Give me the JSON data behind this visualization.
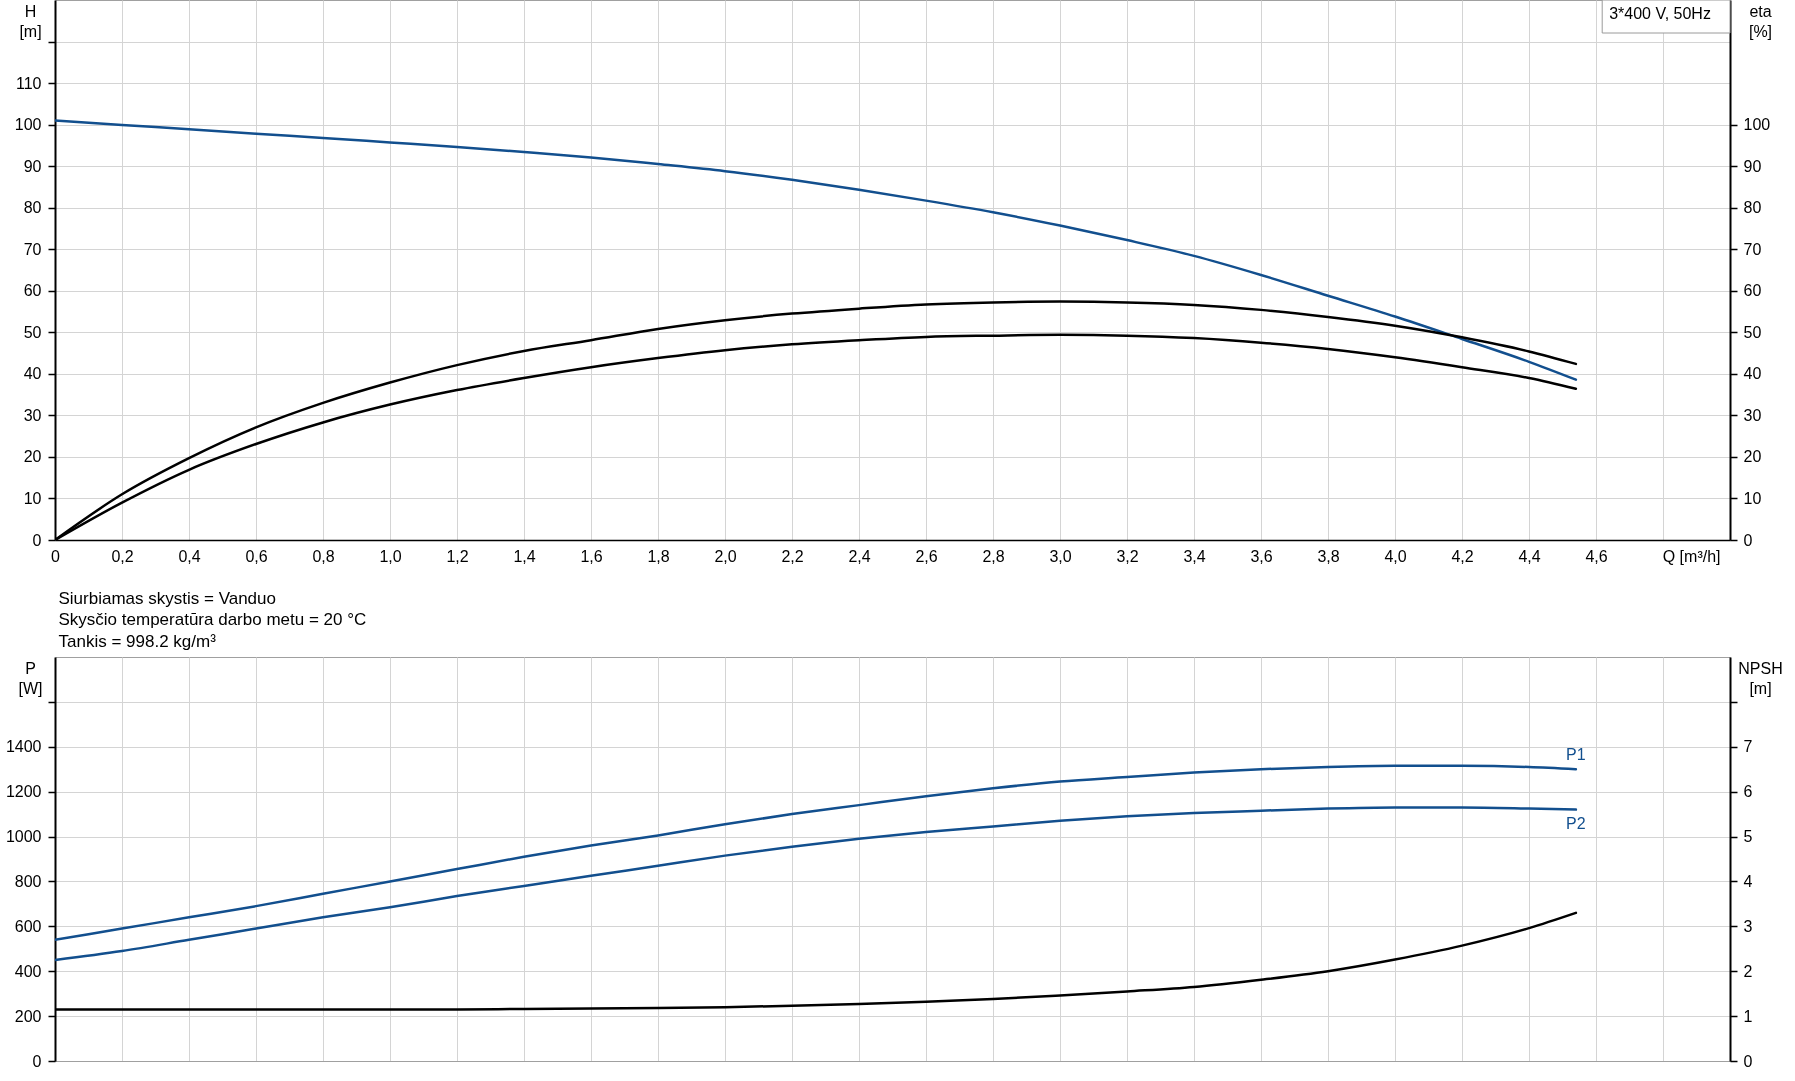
{
  "chart_data": [
    {
      "type": "line",
      "xlabel": "Q [m³/h]",
      "ylabel": "H [m]",
      "y2label": "eta [%]",
      "annotations": [
        "3*400 V, 50Hz"
      ],
      "x": [
        0,
        0.2,
        0.4,
        0.6,
        0.8,
        1.0,
        1.2,
        1.4,
        1.6,
        1.8,
        2.0,
        2.2,
        2.4,
        2.6,
        2.8,
        3.0,
        3.2,
        3.4,
        3.6,
        3.8,
        4.0,
        4.2,
        4.4,
        4.54
      ],
      "xlim": [
        0,
        5
      ],
      "xticks": [
        0,
        {
          "value": 0.2,
          "label": "0,2"
        },
        {
          "value": 0.4,
          "label": "0,4"
        },
        {
          "value": 0.6,
          "label": "0,6"
        },
        {
          "value": 0.8,
          "label": "0,8"
        },
        {
          "value": 1,
          "label": "1,0"
        },
        {
          "value": 1.2,
          "label": "1,2"
        },
        {
          "value": 1.4,
          "label": "1,4"
        },
        {
          "value": 1.6,
          "label": "1,6"
        },
        {
          "value": 1.8,
          "label": "1,8"
        },
        {
          "value": 2,
          "label": "2,0"
        },
        {
          "value": 2.2,
          "label": "2,2"
        },
        {
          "value": 2.4,
          "label": "2,4"
        },
        {
          "value": 2.6,
          "label": "2,6"
        },
        {
          "value": 2.8,
          "label": "2,8"
        },
        {
          "value": 3,
          "label": "3,0"
        },
        {
          "value": 3.2,
          "label": "3,2"
        },
        {
          "value": 3.4,
          "label": "3,4"
        },
        {
          "value": 3.6,
          "label": "3,6"
        },
        {
          "value": 3.8,
          "label": "3,8"
        },
        {
          "value": 4,
          "label": "4,0"
        },
        {
          "value": 4.2,
          "label": "4,2"
        },
        {
          "value": 4.4,
          "label": "4,4"
        },
        {
          "value": 4.6,
          "label": "4,6"
        },
        {
          "value": 4.8,
          "label": null
        }
      ],
      "ylim": [
        0,
        130
      ],
      "yticks": [
        0,
        10,
        20,
        30,
        40,
        50,
        60,
        70,
        80,
        90,
        100,
        110,
        {
          "value": 120,
          "label": null
        }
      ],
      "y2lim": [
        0,
        130
      ],
      "y2ticks": [
        0,
        10,
        20,
        30,
        40,
        50,
        60,
        70,
        80,
        90,
        100
      ],
      "grid": true,
      "series": [
        {
          "color": "#124f8e",
          "values": [
            101.0,
            99.9,
            98.9,
            97.8,
            96.8,
            95.7,
            94.6,
            93.4,
            92.1,
            90.5,
            88.8,
            86.7,
            84.3,
            81.7,
            78.9,
            75.7,
            72.2,
            68.4,
            63.8,
            58.8,
            53.8,
            48.4,
            42.9,
            38.6
          ]
        },
        {
          "color": "#000000",
          "axis": "y2",
          "values": [
            0,
            11.0,
            19.7,
            27.1,
            33.0,
            37.9,
            42.1,
            45.5,
            48.1,
            50.8,
            52.9,
            54.5,
            55.7,
            56.7,
            57.2,
            57.4,
            57.2,
            56.6,
            55.4,
            53.7,
            51.6,
            48.8,
            45.4,
            42.4
          ]
        },
        {
          "color": "#000000",
          "axis": "y2",
          "values": [
            0,
            9.0,
            16.9,
            23.1,
            28.3,
            32.6,
            36.1,
            39.0,
            41.6,
            43.8,
            45.7,
            47.1,
            48.1,
            48.9,
            49.2,
            49.4,
            49.2,
            48.6,
            47.5,
            46.0,
            44.0,
            41.6,
            39.0,
            36.4
          ]
        }
      ]
    },
    {
      "type": "line",
      "ylabel": "P [W]",
      "y2label": "NPSH [m]",
      "annotations": [
        "Siurbiamas skystis = Vanduo",
        "Skysčio temperatūra darbo metu = 20 °C",
        "Tankis = 998.2 kg/m³"
      ],
      "x": [
        0,
        0.2,
        0.4,
        0.6,
        0.8,
        1.0,
        1.2,
        1.4,
        1.6,
        1.8,
        2.0,
        2.2,
        2.4,
        2.6,
        2.8,
        3.0,
        3.2,
        3.4,
        3.6,
        3.8,
        4.0,
        4.2,
        4.4,
        4.54
      ],
      "xlim": [
        0,
        5
      ],
      "xticks": [
        0,
        0.2,
        0.4,
        0.6,
        0.8,
        1,
        1.2,
        1.4,
        1.6,
        1.8,
        2,
        2.2,
        2.4,
        2.6,
        2.8,
        3,
        3.2,
        3.4,
        3.6,
        3.8,
        4,
        4.2,
        4.4,
        4.6,
        4.8
      ],
      "tick_labels": "y",
      "ylim": [
        0,
        1800
      ],
      "yticks": [
        0,
        200,
        400,
        600,
        800,
        1000,
        1200,
        1400,
        {
          "value": 1600,
          "label": null
        }
      ],
      "y2lim": [
        0,
        9
      ],
      "y2ticks": [
        0,
        1,
        2,
        3,
        4,
        5,
        6,
        7,
        {
          "value": 8,
          "label": null
        }
      ],
      "grid": true,
      "series": [
        {
          "name": "P1",
          "color": "#124f8e",
          "values": [
            540,
            590,
            640,
            690,
            745,
            800,
            855,
            910,
            960,
            1005,
            1055,
            1100,
            1140,
            1180,
            1215,
            1245,
            1265,
            1285,
            1300,
            1310,
            1315,
            1315,
            1310,
            1300
          ]
        },
        {
          "name": "P2",
          "color": "#124f8e",
          "values": [
            450,
            490,
            540,
            590,
            640,
            685,
            735,
            780,
            825,
            870,
            915,
            955,
            990,
            1020,
            1045,
            1070,
            1090,
            1105,
            1115,
            1125,
            1130,
            1130,
            1125,
            1120
          ]
        },
        {
          "color": "#000000",
          "axis": "y2",
          "values": [
            1.15,
            1.15,
            1.15,
            1.15,
            1.15,
            1.15,
            1.15,
            1.16,
            1.17,
            1.18,
            1.2,
            1.23,
            1.27,
            1.32,
            1.38,
            1.46,
            1.55,
            1.65,
            1.81,
            2.0,
            2.26,
            2.57,
            2.96,
            3.3
          ]
        }
      ]
    }
  ]
}
